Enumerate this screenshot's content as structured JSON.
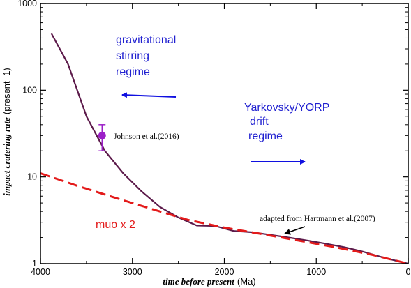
{
  "chart_data": {
    "type": "line",
    "x_axis": {
      "label": "time before present",
      "unit": "(Ma)",
      "range": [
        4000,
        0
      ],
      "ticks": [
        4000,
        3000,
        2000,
        1000,
        0
      ],
      "tick_labels": [
        "4000",
        "3000",
        "2000",
        "1000",
        "0"
      ]
    },
    "y_axis": {
      "label": "impact cratering rate",
      "unit": "(present=1)",
      "scale": "log",
      "range": [
        1,
        1000
      ],
      "ticks": [
        1,
        10,
        100,
        1000
      ],
      "tick_labels": [
        "1",
        "10",
        "100",
        "1000"
      ]
    },
    "grid": false,
    "series": [
      {
        "name": "adapted from Hartmann et al.(2007)",
        "color": "#5c1a4a",
        "style": "solid",
        "x": [
          3880,
          3700,
          3500,
          3300,
          3100,
          2900,
          2700,
          2500,
          2300,
          2100,
          1900,
          1700,
          1500,
          1300,
          1100,
          900,
          700,
          500,
          300,
          100,
          0
        ],
        "y": [
          450,
          200,
          50,
          20,
          11,
          6.8,
          4.5,
          3.4,
          2.75,
          2.72,
          2.38,
          2.3,
          2.15,
          2.0,
          1.85,
          1.7,
          1.55,
          1.38,
          1.2,
          1.06,
          1.0
        ]
      },
      {
        "name": "muo x 2",
        "color": "#e31a1a",
        "style": "dashed",
        "x": [
          4000,
          3600,
          3200,
          2800,
          2400,
          2000,
          1600,
          1200,
          800,
          400,
          0
        ],
        "y": [
          11,
          7.9,
          5.8,
          4.3,
          3.2,
          2.6,
          2.2,
          1.85,
          1.55,
          1.27,
          1.0
        ]
      }
    ],
    "points": [
      {
        "name": "Johnson et al.(2016)",
        "color": "#9b1fc7",
        "x": 3330,
        "y": 30,
        "y_err_low": 20,
        "y_err_high": 40
      }
    ],
    "annotations": [
      {
        "id": "gravitational",
        "lines": [
          "gravitational",
          "stirring",
          "regime"
        ],
        "color": "#1f1fd0"
      },
      {
        "id": "yarkovsky",
        "lines": [
          "Yarkovsky/YORP",
          "drift",
          "regime"
        ],
        "color": "#1f1fd0"
      },
      {
        "id": "muo",
        "lines": [
          "muo x 2"
        ],
        "color": "#e31a1a"
      },
      {
        "id": "johnson",
        "lines": [
          "Johnson et al.(2016)"
        ],
        "color": "#000000"
      },
      {
        "id": "hartmann",
        "lines": [
          "adapted from Hartmann et al.(2007)"
        ],
        "color": "#000000"
      }
    ],
    "arrows": [
      {
        "id": "arrow-gravitational",
        "color": "#1010e0",
        "direction": "left"
      },
      {
        "id": "arrow-yarkovsky",
        "color": "#1010e0",
        "direction": "right"
      },
      {
        "id": "arrow-hartmann",
        "color": "#000000",
        "direction": "down-left"
      }
    ]
  }
}
